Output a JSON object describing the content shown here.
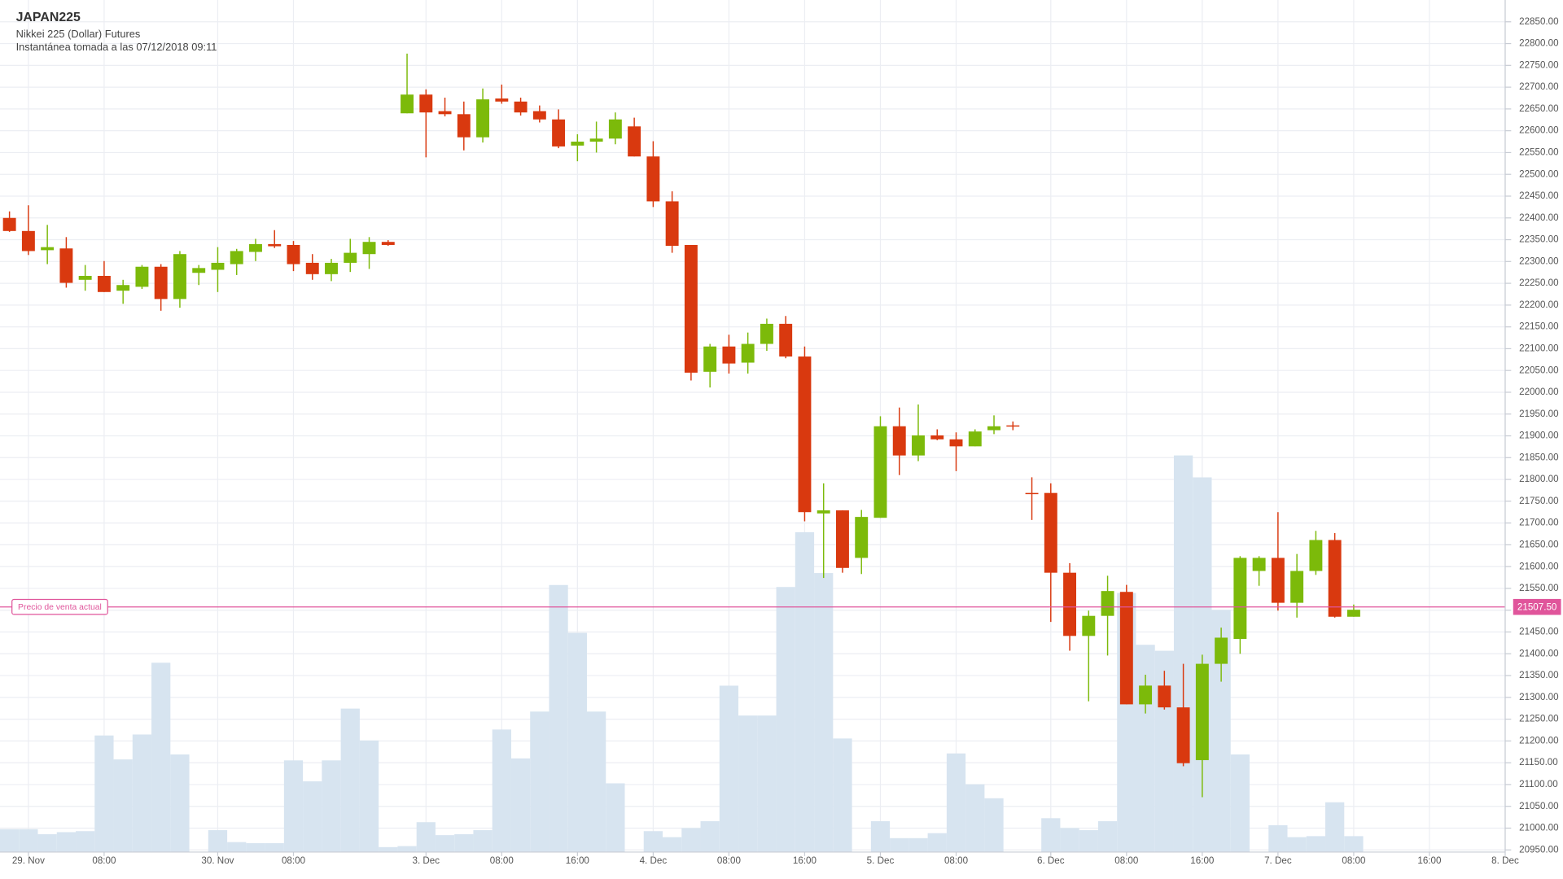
{
  "chart_data": {
    "type": "candlestick",
    "title": "JAPAN225",
    "subtitle": "Nikkei 225 (Dollar) Futures",
    "note": "Instantánea tomada a las 07/12/2018 09:11",
    "open": [
      22400,
      22370,
      22326,
      22330,
      22258,
      22267,
      22233,
      22242,
      22288,
      22214,
      22274,
      22281,
      22294,
      22322,
      22340,
      22338,
      22297,
      22271,
      22297,
      22317,
      22345,
      22640,
      22683,
      22645,
      22638,
      22585,
      22674,
      22667,
      22645,
      22626,
      22566,
      22575,
      22582,
      22610,
      22541,
      22438,
      22338,
      22047,
      22105,
      22068,
      22111,
      22157,
      22082,
      21722,
      21729,
      21620,
      21712,
      21922,
      21855,
      21901,
      21892,
      21876,
      21913,
      21924,
      21769,
      21769,
      21586,
      21441,
      21487,
      21542,
      21284,
      21327,
      21277,
      21156,
      21377,
      21434,
      21590,
      21620,
      21517,
      21590,
      21661,
      21485
    ],
    "high": [
      22415,
      22429,
      22384,
      22356,
      22292,
      22301,
      22258,
      22292,
      22294,
      22324,
      22292,
      22333,
      22329,
      22352,
      22372,
      22347,
      22317,
      22306,
      22352,
      22356,
      22349,
      22777,
      22695,
      22676,
      22667,
      22697,
      22706,
      22676,
      22658,
      22649,
      22592,
      22621,
      22642,
      22630,
      22576,
      22461,
      22338,
      22111,
      22132,
      22137,
      22169,
      22175,
      22105,
      21791,
      21729,
      21730,
      21945,
      21965,
      21972,
      21915,
      21908,
      21915,
      21947,
      21933,
      21805,
      21791,
      21608,
      21499,
      21579,
      21558,
      21352,
      21361,
      21377,
      21398,
      21460,
      21624,
      21624,
      21725,
      21629,
      21682,
      21677,
      21513
    ],
    "low": [
      22368,
      22315,
      22294,
      22240,
      22233,
      22230,
      22203,
      22237,
      22187,
      22194,
      22246,
      22230,
      22269,
      22301,
      22331,
      22278,
      22258,
      22255,
      22276,
      22283,
      22336,
      22640,
      22539,
      22633,
      22555,
      22573,
      22662,
      22635,
      22619,
      22560,
      22530,
      22550,
      22569,
      22541,
      22425,
      22320,
      22027,
      22011,
      22043,
      22043,
      22095,
      22078,
      21704,
      21574,
      21586,
      21583,
      21712,
      21810,
      21842,
      21890,
      21819,
      21876,
      21904,
      21913,
      21707,
      21473,
      21407,
      21291,
      21396,
      21284,
      21263,
      21272,
      21142,
      21071,
      21336,
      21400,
      21556,
      21499,
      21483,
      21581,
      21483,
      21485
    ],
    "close": [
      22370,
      22324,
      22333,
      22251,
      22267,
      22230,
      22246,
      22288,
      22214,
      22317,
      22285,
      22297,
      22324,
      22340,
      22335,
      22294,
      22271,
      22297,
      22320,
      22345,
      22338,
      22683,
      22642,
      22638,
      22585,
      22672,
      22667,
      22642,
      22626,
      22564,
      22575,
      22582,
      22626,
      22541,
      22438,
      22336,
      22045,
      22105,
      22066,
      22111,
      22157,
      22082,
      21725,
      21729,
      21597,
      21714,
      21922,
      21855,
      21901,
      21892,
      21876,
      21910,
      21922,
      21922,
      21767,
      21586,
      21441,
      21487,
      21544,
      21284,
      21327,
      21277,
      21149,
      21377,
      21437,
      21620,
      21620,
      21517,
      21590,
      21661,
      21485,
      21501
    ],
    "volume": [
      23,
      23,
      18,
      20,
      21,
      117,
      93,
      118,
      190,
      98,
      0,
      22,
      10,
      9,
      9,
      92,
      71,
      92,
      144,
      112,
      5,
      6,
      30,
      17,
      18,
      22,
      123,
      94,
      141,
      268,
      220,
      141,
      69,
      0,
      21,
      15,
      24,
      31,
      167,
      137,
      137,
      266,
      321,
      280,
      114,
      0,
      31,
      14,
      14,
      19,
      99,
      68,
      54,
      0,
      0,
      34,
      24,
      22,
      31,
      260,
      208,
      202,
      398,
      376,
      243,
      98,
      0,
      27,
      15,
      16,
      50,
      16
    ],
    "volume_lim": [
      0,
      855
    ],
    "up_color": "#7cba0a",
    "down_color": "#d9390f",
    "volume_color": "#d7e4f0",
    "xlim": [
      -0.5,
      79
    ],
    "xticks": [
      {
        "value": 1,
        "label": "29. Nov"
      },
      {
        "value": 5,
        "label": "08:00"
      },
      {
        "value": 11,
        "label": "30. Nov"
      },
      {
        "value": 15,
        "label": "08:00"
      },
      {
        "value": 22,
        "label": "3. Dec"
      },
      {
        "value": 26,
        "label": "08:00"
      },
      {
        "value": 30,
        "label": "16:00"
      },
      {
        "value": 34,
        "label": "4. Dec"
      },
      {
        "value": 38,
        "label": "08:00"
      },
      {
        "value": 42,
        "label": "16:00"
      },
      {
        "value": 46,
        "label": "5. Dec"
      },
      {
        "value": 50,
        "label": "08:00"
      },
      {
        "value": 55,
        "label": "6. Dec"
      },
      {
        "value": 59,
        "label": "08:00"
      },
      {
        "value": 63,
        "label": "16:00"
      },
      {
        "value": 67,
        "label": "7. Dec"
      },
      {
        "value": 71,
        "label": "08:00"
      },
      {
        "value": 75,
        "label": "16:00"
      },
      {
        "value": 79,
        "label": "8. Dec"
      }
    ],
    "ylim": [
      20945,
      22900
    ],
    "yticks": [
      {
        "value": 20950,
        "label": "20950.00"
      },
      {
        "value": 21000,
        "label": "21000.00"
      },
      {
        "value": 21050,
        "label": "21050.00"
      },
      {
        "value": 21100,
        "label": "21100.00"
      },
      {
        "value": 21150,
        "label": "21150.00"
      },
      {
        "value": 21200,
        "label": "21200.00"
      },
      {
        "value": 21250,
        "label": "21250.00"
      },
      {
        "value": 21300,
        "label": "21300.00"
      },
      {
        "value": 21350,
        "label": "21350.00"
      },
      {
        "value": 21400,
        "label": "21400.00"
      },
      {
        "value": 21450,
        "label": "21450.00"
      },
      {
        "value": 21500,
        "label": "21500.00"
      },
      {
        "value": 21550,
        "label": "21550.00"
      },
      {
        "value": 21600,
        "label": "21600.00"
      },
      {
        "value": 21650,
        "label": "21650.00"
      },
      {
        "value": 21700,
        "label": "21700.00"
      },
      {
        "value": 21750,
        "label": "21750.00"
      },
      {
        "value": 21800,
        "label": "21800.00"
      },
      {
        "value": 21850,
        "label": "21850.00"
      },
      {
        "value": 21900,
        "label": "21900.00"
      },
      {
        "value": 21950,
        "label": "21950.00"
      },
      {
        "value": 22000,
        "label": "22000.00"
      },
      {
        "value": 22050,
        "label": "22050.00"
      },
      {
        "value": 22100,
        "label": "22100.00"
      },
      {
        "value": 22150,
        "label": "22150.00"
      },
      {
        "value": 22200,
        "label": "22200.00"
      },
      {
        "value": 22250,
        "label": "22250.00"
      },
      {
        "value": 22300,
        "label": "22300.00"
      },
      {
        "value": 22350,
        "label": "22350.00"
      },
      {
        "value": 22400,
        "label": "22400.00"
      },
      {
        "value": 22450,
        "label": "22450.00"
      },
      {
        "value": 22500,
        "label": "22500.00"
      },
      {
        "value": 22550,
        "label": "22550.00"
      },
      {
        "value": 22600,
        "label": "22600.00"
      },
      {
        "value": 22650,
        "label": "22650.00"
      },
      {
        "value": 22700,
        "label": "22700.00"
      },
      {
        "value": 22750,
        "label": "22750.00"
      },
      {
        "value": 22800,
        "label": "22800.00"
      },
      {
        "value": 22850,
        "label": "22850.00"
      }
    ],
    "grid": true,
    "current_price": {
      "label": "Precio de venta actual",
      "value": 21507.5,
      "value_label": "21507.50",
      "color": "#e0559b"
    }
  }
}
